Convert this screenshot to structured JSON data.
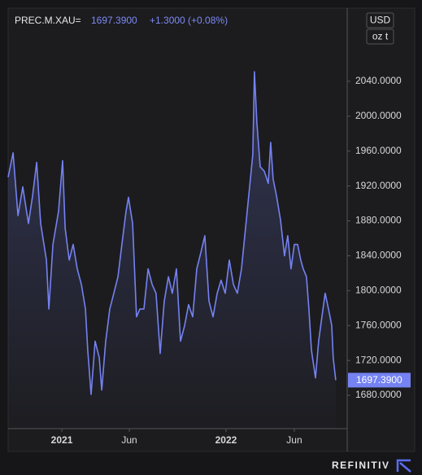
{
  "chart_data": {
    "type": "line",
    "title": "PREC.M.XAU=",
    "last_price": "1697.3900",
    "change": "+1.3000 (+0.08%)",
    "units": [
      "USD",
      "oz t"
    ],
    "brand": "REFINITIV",
    "x": [
      2020.673,
      2020.703,
      2020.733,
      2020.762,
      2020.797,
      2020.822,
      2020.847,
      2020.871,
      2020.906,
      2020.921,
      2020.946,
      2020.98,
      2021.005,
      2021.02,
      2021.045,
      2021.069,
      2021.094,
      2021.119,
      2021.144,
      2021.158,
      2021.178,
      2021.203,
      2021.228,
      2021.243,
      2021.267,
      2021.292,
      2021.317,
      2021.342,
      2021.366,
      2021.391,
      2021.406,
      2021.431,
      2021.455,
      2021.475,
      2021.5,
      2021.525,
      2021.55,
      2021.574,
      2021.599,
      2021.624,
      2021.649,
      2021.673,
      2021.698,
      2021.723,
      2021.748,
      2021.772,
      2021.797,
      2021.822,
      2021.847,
      2021.871,
      2021.896,
      2021.921,
      2021.946,
      2021.97,
      2021.995,
      2022.02,
      2022.045,
      2022.069,
      2022.094,
      2022.119,
      2022.144,
      2022.163,
      2022.173,
      2022.188,
      2022.208,
      2022.233,
      2022.257,
      2022.272,
      2022.287,
      2022.307,
      2022.332,
      2022.356,
      2022.376,
      2022.396,
      2022.416,
      2022.436,
      2022.455,
      2022.47,
      2022.49,
      2022.505,
      2022.52,
      2022.545,
      2022.564,
      2022.584,
      2022.604,
      2022.624,
      2022.644,
      2022.653,
      2022.668
    ],
    "series": [
      {
        "name": "PREC.M.XAU=",
        "color": "#7582f2",
        "values": [
          1930,
          1958,
          1886,
          1919,
          1877,
          1909,
          1947,
          1877,
          1835,
          1779,
          1853,
          1891,
          1949,
          1872,
          1835,
          1853,
          1825,
          1807,
          1779,
          1732,
          1681,
          1742,
          1723,
          1686,
          1742,
          1779,
          1797,
          1816,
          1853,
          1891,
          1907,
          1877,
          1770,
          1779,
          1779,
          1825,
          1807,
          1797,
          1728,
          1788,
          1816,
          1797,
          1825,
          1742,
          1760,
          1784,
          1770,
          1825,
          1844,
          1863,
          1788,
          1770,
          1797,
          1812,
          1797,
          1835,
          1807,
          1797,
          1825,
          1872,
          1919,
          1956,
          2051,
          1993,
          1942,
          1937,
          1923,
          1970,
          1928,
          1909,
          1881,
          1840,
          1863,
          1825,
          1853,
          1853,
          1835,
          1825,
          1816,
          1779,
          1732,
          1700,
          1742,
          1770,
          1797,
          1779,
          1760,
          1723,
          1697.39
        ],
        "value_labels": [
          null,
          null,
          null,
          null,
          null,
          null,
          null,
          null,
          null,
          null,
          null,
          null,
          null,
          null,
          null,
          null,
          null,
          null,
          null,
          null,
          null,
          null,
          null,
          null,
          null,
          null,
          null,
          null,
          null,
          null,
          null,
          null,
          null,
          null,
          null,
          null,
          null,
          null,
          null,
          null,
          null,
          null,
          null,
          null,
          null,
          null,
          null,
          null,
          null,
          null,
          null,
          null,
          null,
          null,
          null,
          null,
          null,
          null,
          null,
          null,
          null,
          null,
          null,
          null,
          null,
          null,
          null,
          null,
          null,
          null,
          null,
          null,
          null,
          null,
          null,
          null,
          null,
          null,
          null,
          null,
          null,
          null,
          null,
          null,
          null,
          null,
          null,
          null,
          "1697.3900"
        ]
      }
    ],
    "xlim": [
      2020.673,
      2022.738
    ],
    "xticks": [
      2021,
      {
        "value": 2021.411,
        "label": "Jun"
      },
      2022,
      {
        "value": 2022.416,
        "label": "Jun"
      }
    ],
    "ylim": [
      1641.8,
      2123.9
    ],
    "yticks": [
      {
        "value": 1680,
        "label": "1680.0000"
      },
      {
        "value": 1720,
        "label": "1720.0000"
      },
      {
        "value": 1760,
        "label": "1760.0000"
      },
      {
        "value": 1800,
        "label": "1800.0000"
      },
      {
        "value": 1840,
        "label": "1840.0000"
      },
      {
        "value": 1880,
        "label": "1880.0000"
      },
      {
        "value": 1920,
        "label": "1920.0000"
      },
      {
        "value": 1960,
        "label": "1960.0000"
      },
      {
        "value": 2000,
        "label": "2000.0000"
      },
      {
        "value": 2040,
        "label": "2040.0000"
      }
    ],
    "grid": false
  }
}
